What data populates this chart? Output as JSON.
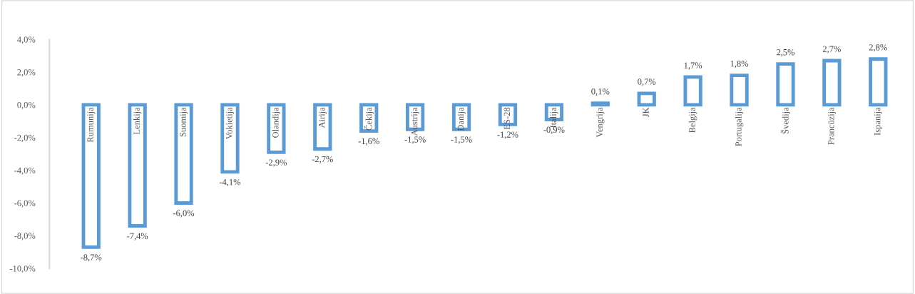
{
  "chart_data": {
    "type": "bar",
    "categories": [
      "Rumunija",
      "Lenkija",
      "Suomija",
      "Vokietija",
      "Olandija",
      "Airija",
      "Čekija",
      "Austrija",
      "Danija",
      "ES-28",
      "Italija",
      "Vengrija",
      "JK",
      "Belgija",
      "Portugalija",
      "Švedija",
      "Prancūzija",
      "Ispanija"
    ],
    "values": [
      -8.7,
      -7.4,
      -6.0,
      -4.1,
      -2.9,
      -2.7,
      -1.6,
      -1.5,
      -1.5,
      -1.2,
      -0.9,
      0.1,
      0.7,
      1.7,
      1.8,
      2.5,
      2.7,
      2.8
    ],
    "value_labels": [
      "-8,7%",
      "-7,4%",
      "-6,0%",
      "-4,1%",
      "-2,9%",
      "-2,7%",
      "-1,6%",
      "-1,5%",
      "-1,5%",
      "-1,2%",
      "-0,9%",
      "0,1%",
      "0,7%",
      "1,7%",
      "1,8%",
      "2,5%",
      "2,7%",
      "2,8%"
    ],
    "color": "#5b9bd5",
    "ylim": [
      -10,
      4
    ],
    "yticks": [
      {
        "value": -10,
        "label": "-10,0%"
      },
      {
        "value": -8,
        "label": "-8,0%"
      },
      {
        "value": -6,
        "label": "-6,0%"
      },
      {
        "value": -4,
        "label": "-4,0%"
      },
      {
        "value": -2,
        "label": "-2,0%"
      },
      {
        "value": 0,
        "label": "0,0%"
      },
      {
        "value": 2,
        "label": "2,0%"
      },
      {
        "value": 4,
        "label": "4,0%"
      }
    ],
    "grid": false
  }
}
